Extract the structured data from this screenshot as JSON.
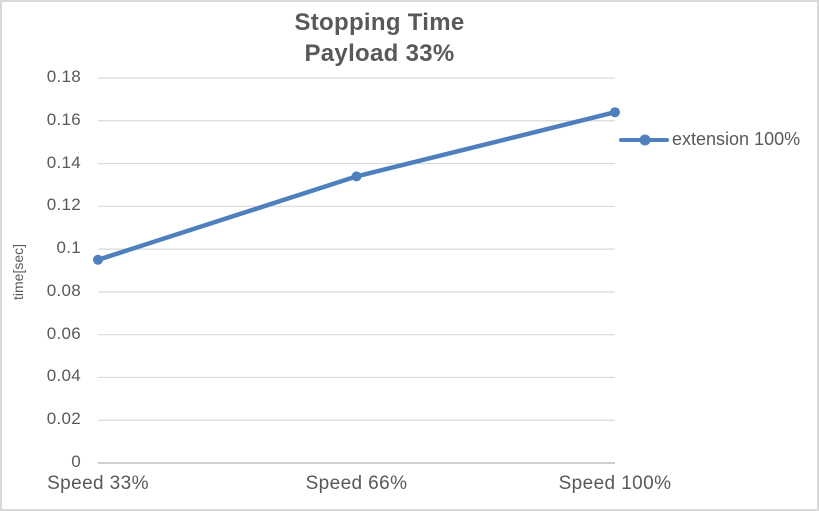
{
  "chart": {
    "title_line1": "Stopping Time",
    "title_line2": "Payload 33%",
    "colors": {
      "series": "#4E80BD",
      "gridline": "#D9D9D9",
      "axis_line": "#BFBFBF",
      "text": "#595959"
    }
  },
  "chart_data": {
    "type": "line",
    "title": "Stopping Time Payload 33%",
    "categories": [
      "Speed 33%",
      "Speed 66%",
      "Speed 100%"
    ],
    "series": [
      {
        "name": "extension 100%",
        "values": [
          0.095,
          0.134,
          0.164
        ]
      }
    ],
    "xlabel": "",
    "ylabel": "time[sec]",
    "ylim": [
      0,
      0.18
    ],
    "ytick_step": 0.02,
    "grid": "horizontal",
    "legend_position": "right",
    "marker": "circle"
  }
}
